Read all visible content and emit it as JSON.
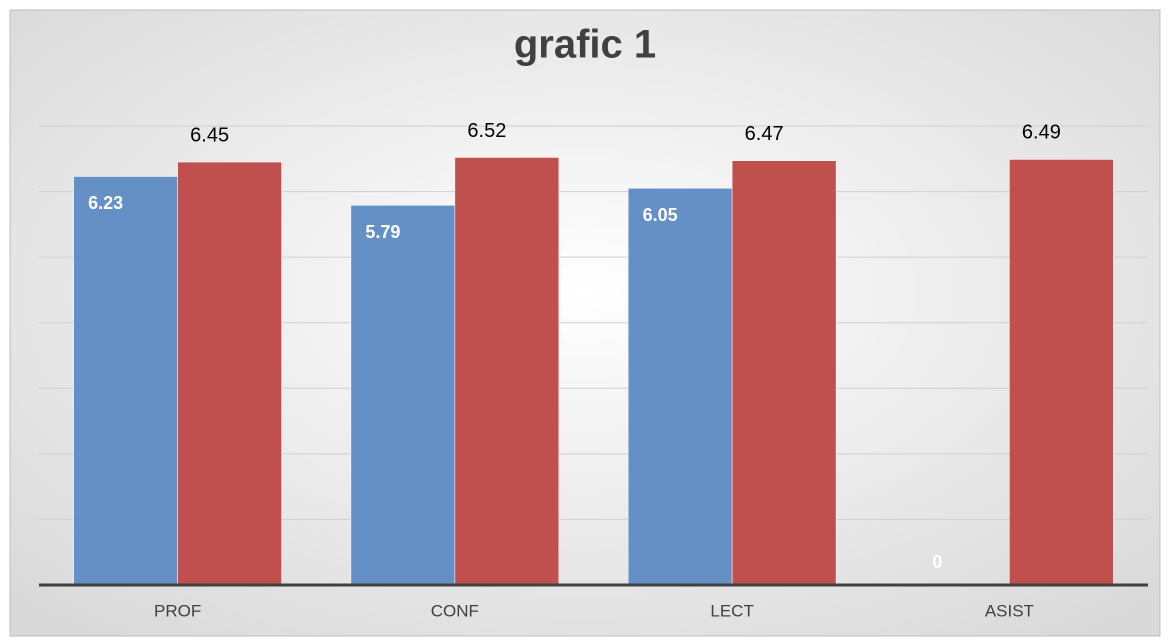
{
  "chart_data": {
    "type": "bar",
    "title": "grafic 1",
    "categories": [
      "PROF",
      "CONF",
      "LECT",
      "ASIST"
    ],
    "series": [
      {
        "color": "#6490c6",
        "values": [
          6.23,
          5.79,
          6.05,
          0
        ]
      },
      {
        "color": "#c0504d",
        "values": [
          6.45,
          6.52,
          6.47,
          6.49
        ]
      }
    ],
    "ylim": [
      0,
      7
    ],
    "yticks": [
      0,
      1,
      2,
      3,
      4,
      5,
      6,
      7
    ],
    "grid": true
  }
}
